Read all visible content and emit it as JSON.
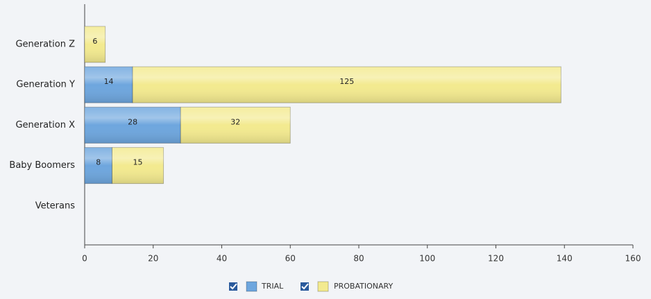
{
  "chart_data": {
    "type": "bar",
    "orientation": "horizontal",
    "stacked": true,
    "categories": [
      "Generation Z",
      "Generation Y",
      "Generation X",
      "Baby Boomers",
      "Veterans"
    ],
    "series": [
      {
        "name": "TRIAL",
        "color": "#6ea6de",
        "values": [
          null,
          14,
          28,
          8,
          null
        ]
      },
      {
        "name": "PROBATIONARY",
        "color": "#f3ea8f",
        "values": [
          6,
          125,
          32,
          15,
          null
        ]
      }
    ],
    "xlim": [
      0,
      160
    ],
    "xticks": [
      0,
      20,
      40,
      60,
      80,
      100,
      120,
      140,
      160
    ]
  }
}
